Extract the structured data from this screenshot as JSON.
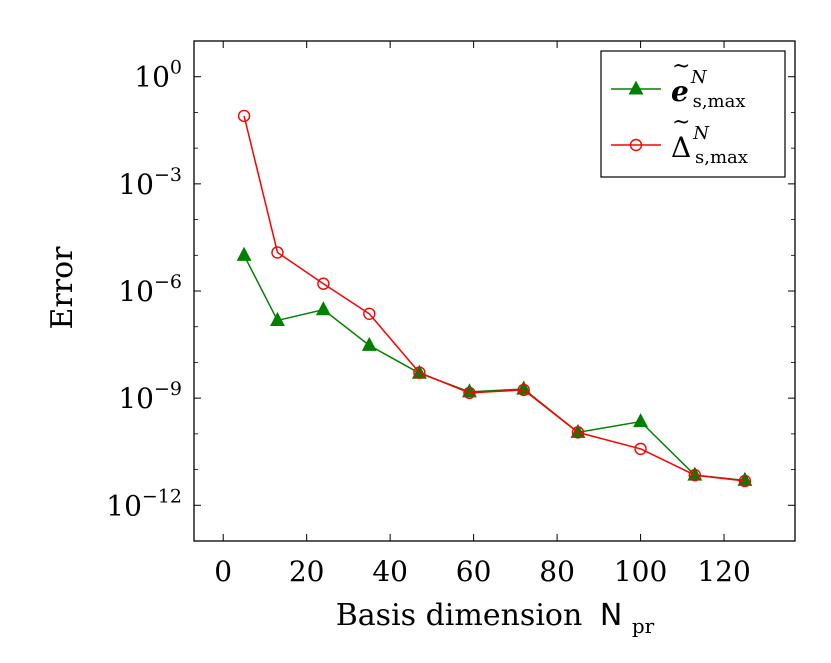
{
  "chart_data": {
    "type": "line",
    "title": "",
    "xlabel": "Basis dimension",
    "xlabel_symbol": "N",
    "xlabel_subscript": "pr",
    "ylabel": "Error",
    "xlim": [
      -7,
      137
    ],
    "ylim": [
      1e-13,
      10
    ],
    "y_scale": "log",
    "grid": false,
    "legend_position": "top-right",
    "x_ticks": [
      0,
      20,
      40,
      60,
      80,
      100,
      120
    ],
    "y_ticks": [
      {
        "value": 1,
        "base": "10",
        "exp": "0"
      },
      {
        "value": 0.001,
        "base": "10",
        "exp": "−3"
      },
      {
        "value": 1e-06,
        "base": "10",
        "exp": "−6"
      },
      {
        "value": 1e-09,
        "base": "10",
        "exp": "−9"
      },
      {
        "value": 1e-12,
        "base": "10",
        "exp": "−12"
      }
    ],
    "series": [
      {
        "name": "e~ s,max N",
        "legend_symbol": "e",
        "legend_superscript": "N",
        "legend_subscript": "s,max",
        "color": "#008000",
        "marker": "triangle",
        "x": [
          5,
          13,
          24,
          35,
          47,
          59,
          72,
          85,
          100,
          113,
          125
        ],
        "y": [
          1e-05,
          1.5e-07,
          3e-07,
          3e-08,
          5e-09,
          1.5e-09,
          1.8e-09,
          1.1e-10,
          2.2e-10,
          7e-12,
          5e-12
        ]
      },
      {
        "name": "Δ~ s,max N",
        "legend_symbol": "Δ",
        "legend_superscript": "N",
        "legend_subscript": "s,max",
        "color": "#ff0000",
        "marker": "circle",
        "x": [
          5,
          13,
          24,
          35,
          47,
          59,
          72,
          85,
          100,
          113,
          125
        ],
        "y": [
          0.08,
          1.2e-05,
          1.6e-06,
          2.3e-07,
          5.2e-09,
          1.4e-09,
          1.7e-09,
          1.1e-10,
          3.8e-11,
          7e-12,
          4.8e-12
        ]
      }
    ]
  }
}
